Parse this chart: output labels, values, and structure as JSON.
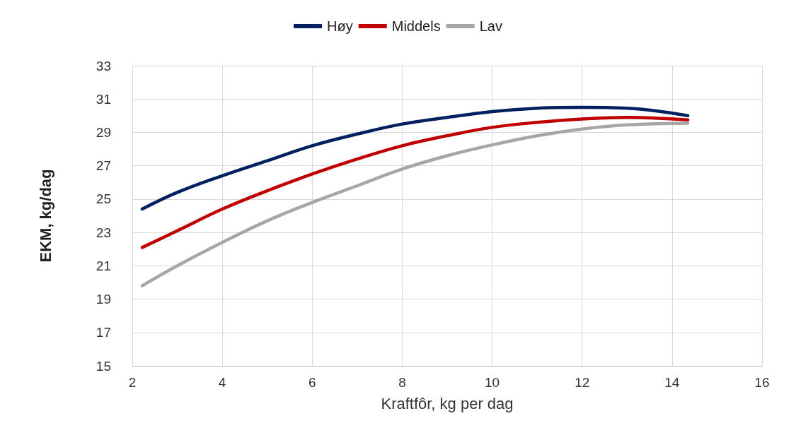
{
  "chart_data": {
    "type": "line",
    "xlabel": "Kraftfôr, kg per dag",
    "ylabel": "EKM, kg/dag",
    "xlim": [
      2,
      16
    ],
    "xticks": [
      2,
      4,
      6,
      8,
      10,
      12,
      14,
      16
    ],
    "ylim": [
      15,
      33
    ],
    "yticks": [
      15,
      17,
      19,
      21,
      23,
      25,
      27,
      29,
      31,
      33
    ],
    "grid": true,
    "legend": "top",
    "marker": "none",
    "line_style": "solid",
    "series": [
      {
        "name": "Høy",
        "color": "#002060",
        "x": [
          2.22,
          3,
          4,
          5,
          6,
          7,
          8,
          9,
          10,
          11,
          12,
          13,
          14.35
        ],
        "values": [
          24.4,
          25.4,
          26.4,
          27.3,
          28.2,
          28.9,
          29.5,
          29.9,
          30.25,
          30.45,
          30.5,
          30.45,
          30.0
        ]
      },
      {
        "name": "Middels",
        "color": "#c00000",
        "x": [
          2.22,
          3,
          4,
          5,
          6,
          7,
          8,
          9,
          10,
          11,
          12,
          13,
          14.35
        ],
        "values": [
          22.1,
          23.1,
          24.4,
          25.5,
          26.5,
          27.4,
          28.2,
          28.8,
          29.3,
          29.6,
          29.8,
          29.9,
          29.75
        ]
      },
      {
        "name": "Lav",
        "color": "#a6a6a6",
        "x": [
          2.22,
          3,
          4,
          5,
          6,
          7,
          8,
          9,
          10,
          11,
          12,
          13,
          14.35
        ],
        "values": [
          19.8,
          21.0,
          22.4,
          23.7,
          24.8,
          25.8,
          26.8,
          27.6,
          28.25,
          28.8,
          29.2,
          29.45,
          29.55
        ]
      }
    ]
  }
}
